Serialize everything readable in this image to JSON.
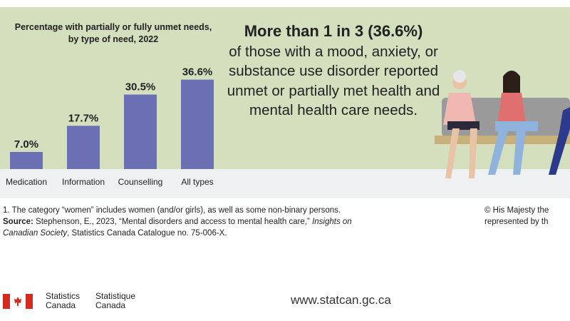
{
  "chart_data": {
    "type": "bar",
    "title": "Percentage with partially or fully unmet needs, by type of need, 2022",
    "categories": [
      "Medication",
      "Information",
      "Counselling",
      "All types"
    ],
    "values": [
      7.0,
      17.7,
      30.5,
      36.6
    ],
    "data_labels": [
      "7.0%",
      "17.7%",
      "30.5%",
      "36.6%"
    ],
    "xlabel": "",
    "ylabel": "",
    "ylim": [
      0,
      40
    ],
    "grid": false,
    "bar_color": "#6b6fb3"
  },
  "headline": {
    "emphasis": "More than 1 in 3 (36.6%)",
    "body": "of those with a mood, anxiety, or substance use disorder reported unmet or partially met health and mental health care needs."
  },
  "footnote": {
    "note": "1.  The category  “women” includes women (and/or girls), as well as some non-binary persons.",
    "source_label": "Source:",
    "source_text": " Stephenson, E., 2023, “Mental disorders and access to mental health care,” ",
    "source_italic": "Insights on Canadian Society",
    "source_end": ", Statistics Canada Catalogue no. 75-006-X.",
    "copyright_1": "© His Majesty the",
    "copyright_2": "represented by th"
  },
  "footer": {
    "en": [
      "Statistics",
      "Canada"
    ],
    "fr": [
      "Statistique",
      "Canada"
    ],
    "url": "www.statcan.gc.ca"
  }
}
